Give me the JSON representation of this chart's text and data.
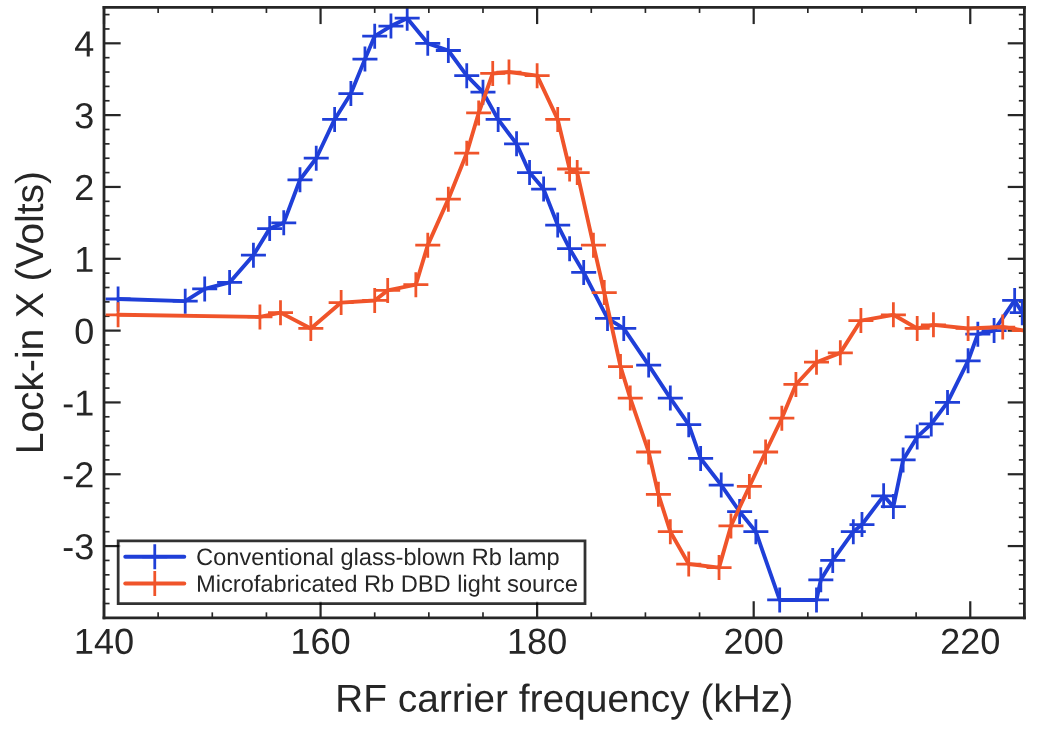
{
  "chart_data": {
    "type": "line",
    "xlabel": "RF carrier frequency (kHz)",
    "ylabel": "Lock-in X (Volts)",
    "xlim": [
      140,
      225
    ],
    "xticks": [
      140,
      160,
      180,
      200,
      220
    ],
    "ylim": [
      -4,
      4.5
    ],
    "yticks": [
      -3,
      -2,
      -1,
      0,
      1,
      2,
      3,
      4
    ],
    "grid": false,
    "legend": "bottom left",
    "marker": "cross",
    "line_style": "solid",
    "series": [
      {
        "name": "Conventional glass-blown Rb lamp",
        "color": "#1f3fd8",
        "x": [
          141.3,
          147.5,
          149.3,
          151.6,
          153.8,
          155.3,
          156.6,
          158.1,
          159.6,
          161.3,
          162.8,
          164.1,
          165,
          166.5,
          168,
          169.9,
          171.8,
          173.5,
          175,
          176.4,
          178.1,
          179.3,
          180.6,
          181.9,
          183,
          184.3,
          186.5,
          188,
          190.3,
          192.3,
          194,
          195.1,
          197,
          198.7,
          200.2,
          202.4,
          205.8,
          206.2,
          207.3,
          209.2,
          210,
          212,
          212.9,
          213.8,
          215.1,
          216.4,
          217.9,
          219.8,
          220.7,
          222.2,
          224.1,
          224.8
        ],
        "values": [
          0.44,
          0.41,
          0.58,
          0.67,
          1.05,
          1.42,
          1.5,
          2.1,
          2.4,
          2.94,
          3.3,
          3.78,
          4.1,
          4.24,
          4.35,
          4.0,
          3.9,
          3.55,
          3.32,
          2.94,
          2.6,
          2.2,
          1.97,
          1.47,
          1.14,
          0.81,
          0.17,
          0.03,
          -0.48,
          -0.94,
          -1.31,
          -1.78,
          -2.15,
          -2.52,
          -2.8,
          -3.75,
          -3.75,
          -3.47,
          -3.2,
          -2.8,
          -2.7,
          -2.3,
          -2.45,
          -1.8,
          -1.48,
          -1.3,
          -1.0,
          -0.42,
          -0.05,
          0.0,
          0.42,
          0.25
        ]
      },
      {
        "name": "Microfabricated Rb DBD light source",
        "color": "#f0542a",
        "x": [
          141.3,
          154.4,
          156.3,
          159.1,
          161.9,
          165,
          166.2,
          168.8,
          169.9,
          171.8,
          173.5,
          174.6,
          175.9,
          177.4,
          180,
          181.9,
          183,
          183.7,
          185.2,
          186.2,
          187.7,
          188.6,
          190.3,
          191.2,
          192.3,
          194,
          196.8,
          197.9,
          199.6,
          201.1,
          202.6,
          203.9,
          205.8,
          208,
          209.9,
          212.9,
          215.1,
          216.6,
          219.8,
          223,
          225
        ],
        "values": [
          0.22,
          0.19,
          0.25,
          0.03,
          0.39,
          0.42,
          0.56,
          0.64,
          1.19,
          1.83,
          2.47,
          3.03,
          3.58,
          3.6,
          3.55,
          2.94,
          2.25,
          2.2,
          1.19,
          0.53,
          -0.5,
          -0.94,
          -1.69,
          -2.28,
          -2.8,
          -3.25,
          -3.3,
          -2.72,
          -2.17,
          -1.69,
          -1.22,
          -0.75,
          -0.44,
          -0.31,
          0.14,
          0.22,
          0.03,
          0.08,
          0.03,
          0.05,
          0.0
        ]
      }
    ]
  }
}
